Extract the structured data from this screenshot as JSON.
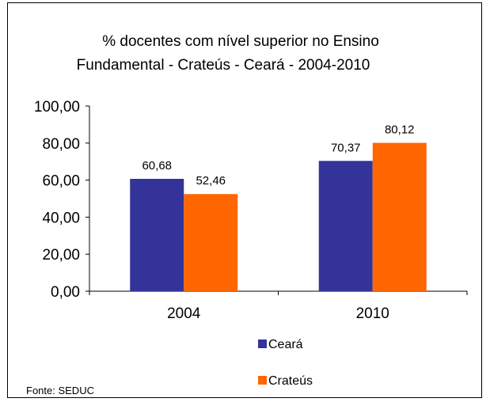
{
  "source_note": "Fonte: SEDUC",
  "colors": {
    "background": "#ffffff",
    "border": "#000000",
    "series_ceara": "#333399",
    "series_crateus": "#ff6600"
  },
  "chart_data": {
    "type": "bar",
    "title_lines": [
      "% docentes com nível  superior no Ensino",
      "Fundamental  - Crateús -  Ceará - 2004-2010"
    ],
    "xlabel": "",
    "ylabel": "",
    "categories": [
      "2004",
      "2010"
    ],
    "series": [
      {
        "name": "Ceará",
        "color": "#333399",
        "values": [
          60.68,
          70.37
        ],
        "labels": [
          "60,68",
          "70,37"
        ]
      },
      {
        "name": "Crateús",
        "color": "#ff6600",
        "values": [
          52.46,
          80.12
        ],
        "labels": [
          "52,46",
          "80,12"
        ]
      }
    ],
    "ylim": [
      0,
      100
    ],
    "yticks": [
      0,
      20,
      40,
      60,
      80,
      100
    ],
    "ytick_labels": [
      "0,00",
      "20,00",
      "40,00",
      "60,00",
      "80,00",
      "100,00"
    ],
    "grid": false,
    "legend_position": "bottom"
  }
}
